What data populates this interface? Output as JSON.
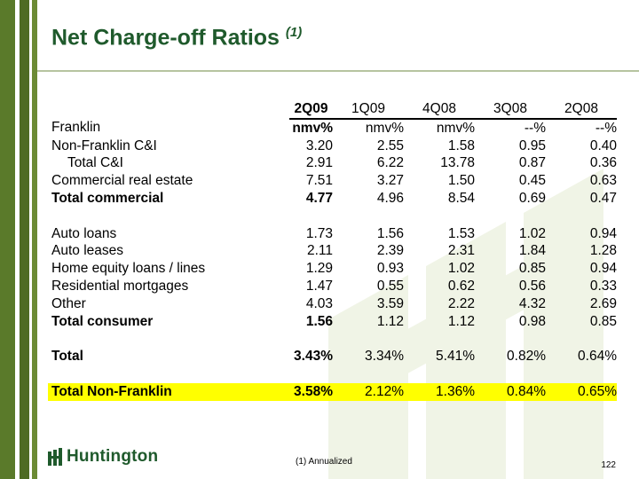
{
  "slide": {
    "title": "Net Charge-off Ratios",
    "title_note": "(1)",
    "footnote": "(1)  Annualized",
    "page_number": "122",
    "brand": "Huntington"
  },
  "table": {
    "columns": [
      "2Q09",
      "1Q09",
      "4Q08",
      "3Q08",
      "2Q08"
    ],
    "rows": [
      {
        "label": "Franklin",
        "values": [
          "nmv%",
          "nmv%",
          "nmv%",
          "--%",
          "--%"
        ]
      },
      {
        "label": "Non-Franklin C&I",
        "values": [
          "3.20",
          "2.55",
          "1.58",
          "0.95",
          "0.40"
        ]
      },
      {
        "label": "Total C&I",
        "values": [
          "2.91",
          "6.22",
          "13.78",
          "0.87",
          "0.36"
        ]
      },
      {
        "label": "Commercial real estate",
        "values": [
          "7.51",
          "3.27",
          "1.50",
          "0.45",
          "0.63"
        ]
      },
      {
        "label": "Total commercial",
        "values": [
          "4.77",
          "4.96",
          "8.54",
          "0.69",
          "0.47"
        ]
      },
      {
        "label": "Auto loans",
        "values": [
          "1.73",
          "1.56",
          "1.53",
          "1.02",
          "0.94"
        ]
      },
      {
        "label": "Auto leases",
        "values": [
          "2.11",
          "2.39",
          "2.31",
          "1.84",
          "1.28"
        ]
      },
      {
        "label": "Home equity loans / lines",
        "values": [
          "1.29",
          "0.93",
          "1.02",
          "0.85",
          "0.94"
        ]
      },
      {
        "label": "Residential mortgages",
        "values": [
          "1.47",
          "0.55",
          "0.62",
          "0.56",
          "0.33"
        ]
      },
      {
        "label": "Other",
        "values": [
          "4.03",
          "3.59",
          "2.22",
          "4.32",
          "2.69"
        ]
      },
      {
        "label": "Total consumer",
        "values": [
          "1.56",
          "1.12",
          "1.12",
          "0.98",
          "0.85"
        ]
      },
      {
        "label": "Total",
        "values": [
          "3.43%",
          "3.34%",
          "5.41%",
          "0.82%",
          "0.64%"
        ]
      },
      {
        "label": "Total Non-Franklin",
        "values": [
          "3.58%",
          "2.12%",
          "1.36%",
          "0.84%",
          "0.65%"
        ]
      }
    ]
  },
  "colors": {
    "title": "#1f5a2c",
    "highlight": "#ffff00",
    "stripe": "#5a7a2a"
  }
}
